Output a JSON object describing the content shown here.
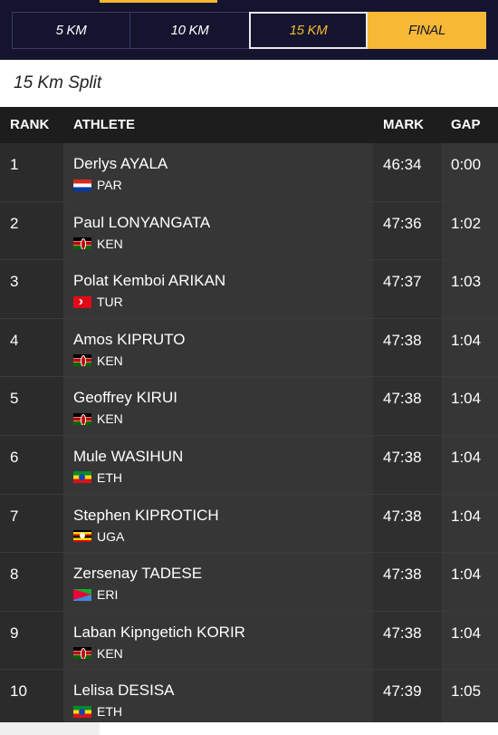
{
  "tabs": [
    {
      "label": "5 KM",
      "state": "default"
    },
    {
      "label": "10 KM",
      "state": "default"
    },
    {
      "label": "15 KM",
      "state": "selected"
    },
    {
      "label": "FINAL",
      "state": "highlight"
    }
  ],
  "split_title": "15 Km Split",
  "table": {
    "headers": {
      "rank": "RANK",
      "athlete": "ATHLETE",
      "mark": "MARK",
      "gap": "GAP"
    },
    "rows": [
      {
        "rank": "1",
        "name": "Derlys AYALA",
        "country": "PAR",
        "mark": "46:34",
        "gap": "0:00"
      },
      {
        "rank": "2",
        "name": "Paul LONYANGATA",
        "country": "KEN",
        "mark": "47:36",
        "gap": "1:02"
      },
      {
        "rank": "3",
        "name": "Polat Kemboi ARIKAN",
        "country": "TUR",
        "mark": "47:37",
        "gap": "1:03"
      },
      {
        "rank": "4",
        "name": "Amos KIPRUTO",
        "country": "KEN",
        "mark": "47:38",
        "gap": "1:04"
      },
      {
        "rank": "5",
        "name": "Geoffrey KIRUI",
        "country": "KEN",
        "mark": "47:38",
        "gap": "1:04"
      },
      {
        "rank": "6",
        "name": "Mule WASIHUN",
        "country": "ETH",
        "mark": "47:38",
        "gap": "1:04"
      },
      {
        "rank": "7",
        "name": "Stephen KIPROTICH",
        "country": "UGA",
        "mark": "47:38",
        "gap": "1:04"
      },
      {
        "rank": "8",
        "name": "Zersenay TADESE",
        "country": "ERI",
        "mark": "47:38",
        "gap": "1:04"
      },
      {
        "rank": "9",
        "name": "Laban Kipngetich KORIR",
        "country": "KEN",
        "mark": "47:38",
        "gap": "1:04"
      },
      {
        "rank": "10",
        "name": "Lelisa DESISA",
        "country": "ETH",
        "mark": "47:39",
        "gap": "1:05"
      }
    ]
  },
  "colors": {
    "accent": "#f6b835",
    "nav_bg": "#14142f",
    "table_bg": "#2d2d2d"
  }
}
